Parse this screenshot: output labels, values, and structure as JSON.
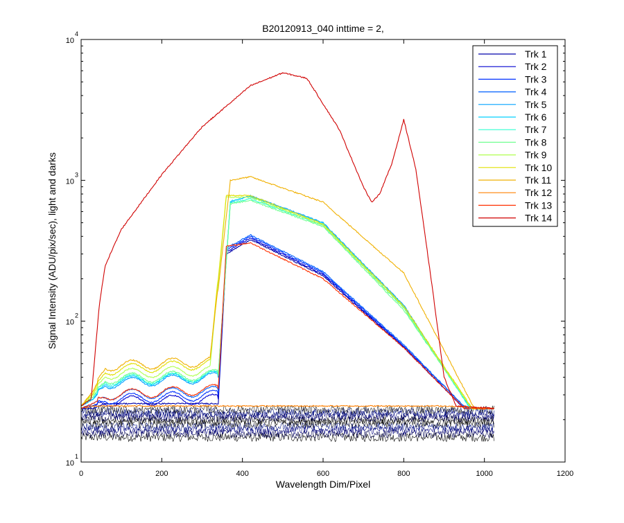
{
  "chart_data": {
    "type": "line",
    "title": "B20120913_040 inttime = 2,",
    "xlabel": "Wavelength Dim/Pixel",
    "ylabel": "Signal Intensity (ADU/pix/sec), light and darks",
    "xlim": [
      0,
      1200
    ],
    "ylim": [
      10,
      10000
    ],
    "yscale": "log",
    "grid": false,
    "legend_position": "top-right",
    "x_ticks": [
      0,
      200,
      400,
      600,
      800,
      1000,
      1200
    ],
    "x_tick_labels": [
      "0",
      "200",
      "400",
      "600",
      "800",
      "1000",
      "1200"
    ],
    "y_ticks": [
      10,
      100,
      1000,
      10000
    ],
    "y_tick_labels": [
      {
        "base": "10",
        "exp": "1"
      },
      {
        "base": "10",
        "exp": "2"
      },
      {
        "base": "10",
        "exp": "3"
      },
      {
        "base": "10",
        "exp": "4"
      }
    ],
    "series": [
      {
        "name": "Trk 1",
        "color": "#0000aa",
        "points": [
          [
            0,
            24
          ],
          [
            30,
            24
          ],
          [
            60,
            26
          ],
          [
            340,
            26
          ],
          [
            360,
            300
          ],
          [
            420,
            380
          ],
          [
            600,
            210
          ],
          [
            800,
            65
          ],
          [
            950,
            24
          ],
          [
            1024,
            24
          ]
        ]
      },
      {
        "name": "Trk 2",
        "color": "#0000d0",
        "points": [
          [
            0,
            24
          ],
          [
            30,
            25
          ],
          [
            60,
            27
          ],
          [
            340,
            28
          ],
          [
            360,
            310
          ],
          [
            420,
            390
          ],
          [
            600,
            215
          ],
          [
            800,
            66
          ],
          [
            950,
            24
          ],
          [
            1024,
            24
          ]
        ]
      },
      {
        "name": "Trk 3",
        "color": "#0030ff",
        "points": [
          [
            0,
            24
          ],
          [
            30,
            25
          ],
          [
            60,
            28
          ],
          [
            340,
            30
          ],
          [
            360,
            320
          ],
          [
            420,
            400
          ],
          [
            600,
            220
          ],
          [
            800,
            67
          ],
          [
            955,
            24
          ],
          [
            1024,
            24
          ]
        ]
      },
      {
        "name": "Trk 4",
        "color": "#0060ff",
        "points": [
          [
            0,
            24
          ],
          [
            30,
            26
          ],
          [
            60,
            30
          ],
          [
            340,
            32
          ],
          [
            360,
            330
          ],
          [
            420,
            410
          ],
          [
            600,
            225
          ],
          [
            800,
            68
          ],
          [
            955,
            24
          ],
          [
            1024,
            24
          ]
        ]
      },
      {
        "name": "Trk 5",
        "color": "#00a0ff",
        "points": [
          [
            0,
            25
          ],
          [
            30,
            28
          ],
          [
            60,
            36
          ],
          [
            340,
            40
          ],
          [
            370,
            700
          ],
          [
            420,
            780
          ],
          [
            600,
            500
          ],
          [
            800,
            130
          ],
          [
            965,
            24
          ],
          [
            1024,
            24
          ]
        ]
      },
      {
        "name": "Trk 6",
        "color": "#00d0ff",
        "points": [
          [
            0,
            25
          ],
          [
            30,
            28
          ],
          [
            60,
            37
          ],
          [
            340,
            41
          ],
          [
            370,
            710
          ],
          [
            420,
            770
          ],
          [
            600,
            495
          ],
          [
            800,
            128
          ],
          [
            965,
            24
          ],
          [
            1024,
            24
          ]
        ]
      },
      {
        "name": "Trk 7",
        "color": "#30ffd0",
        "points": [
          [
            0,
            25
          ],
          [
            30,
            29
          ],
          [
            60,
            38
          ],
          [
            340,
            41
          ],
          [
            370,
            690
          ],
          [
            420,
            740
          ],
          [
            600,
            480
          ],
          [
            800,
            124
          ],
          [
            965,
            24
          ],
          [
            1024,
            24
          ]
        ]
      },
      {
        "name": "Trk 8",
        "color": "#70ff90",
        "points": [
          [
            0,
            25
          ],
          [
            30,
            29
          ],
          [
            60,
            39
          ],
          [
            340,
            42
          ],
          [
            370,
            680
          ],
          [
            420,
            720
          ],
          [
            600,
            470
          ],
          [
            800,
            120
          ],
          [
            968,
            24
          ],
          [
            1024,
            24
          ]
        ]
      },
      {
        "name": "Trk 9",
        "color": "#b0ff50",
        "points": [
          [
            0,
            25
          ],
          [
            30,
            30
          ],
          [
            60,
            42
          ],
          [
            320,
            45
          ],
          [
            360,
            760
          ],
          [
            420,
            760
          ],
          [
            600,
            480
          ],
          [
            800,
            125
          ],
          [
            968,
            24
          ],
          [
            1024,
            24
          ]
        ]
      },
      {
        "name": "Trk 10",
        "color": "#e0e000",
        "points": [
          [
            0,
            25
          ],
          [
            30,
            31
          ],
          [
            60,
            45
          ],
          [
            320,
            50
          ],
          [
            360,
            780
          ],
          [
            420,
            780
          ],
          [
            600,
            490
          ],
          [
            800,
            128
          ],
          [
            970,
            24
          ],
          [
            1024,
            24
          ]
        ]
      },
      {
        "name": "Trk 11",
        "color": "#f0b000",
        "points": [
          [
            0,
            25
          ],
          [
            30,
            32
          ],
          [
            60,
            48
          ],
          [
            320,
            52
          ],
          [
            370,
            1000
          ],
          [
            420,
            1060
          ],
          [
            600,
            700
          ],
          [
            800,
            220
          ],
          [
            975,
            24
          ],
          [
            1024,
            24
          ]
        ]
      },
      {
        "name": "Trk 12",
        "color": "#ff8000",
        "points": [
          [
            0,
            24
          ],
          [
            30,
            25
          ],
          [
            60,
            25
          ],
          [
            340,
            25
          ],
          [
            380,
            25
          ],
          [
            600,
            25
          ],
          [
            900,
            25
          ],
          [
            1024,
            24
          ]
        ]
      },
      {
        "name": "Trk 13",
        "color": "#ff3000",
        "points": [
          [
            0,
            24
          ],
          [
            30,
            26
          ],
          [
            60,
            30
          ],
          [
            340,
            33
          ],
          [
            360,
            340
          ],
          [
            420,
            360
          ],
          [
            600,
            200
          ],
          [
            800,
            65
          ],
          [
            950,
            24
          ],
          [
            1024,
            24
          ]
        ]
      },
      {
        "name": "Trk 14",
        "color": "#d00000",
        "points": [
          [
            0,
            25
          ],
          [
            25,
            28
          ],
          [
            45,
            130
          ],
          [
            60,
            250
          ],
          [
            100,
            450
          ],
          [
            200,
            1100
          ],
          [
            300,
            2400
          ],
          [
            420,
            4700
          ],
          [
            500,
            5800
          ],
          [
            560,
            5300
          ],
          [
            640,
            2300
          ],
          [
            700,
            900
          ],
          [
            720,
            700
          ],
          [
            740,
            800
          ],
          [
            770,
            1300
          ],
          [
            800,
            2700
          ],
          [
            830,
            1200
          ],
          [
            870,
            180
          ],
          [
            900,
            40
          ],
          [
            930,
            25
          ],
          [
            1024,
            24
          ]
        ]
      }
    ]
  }
}
